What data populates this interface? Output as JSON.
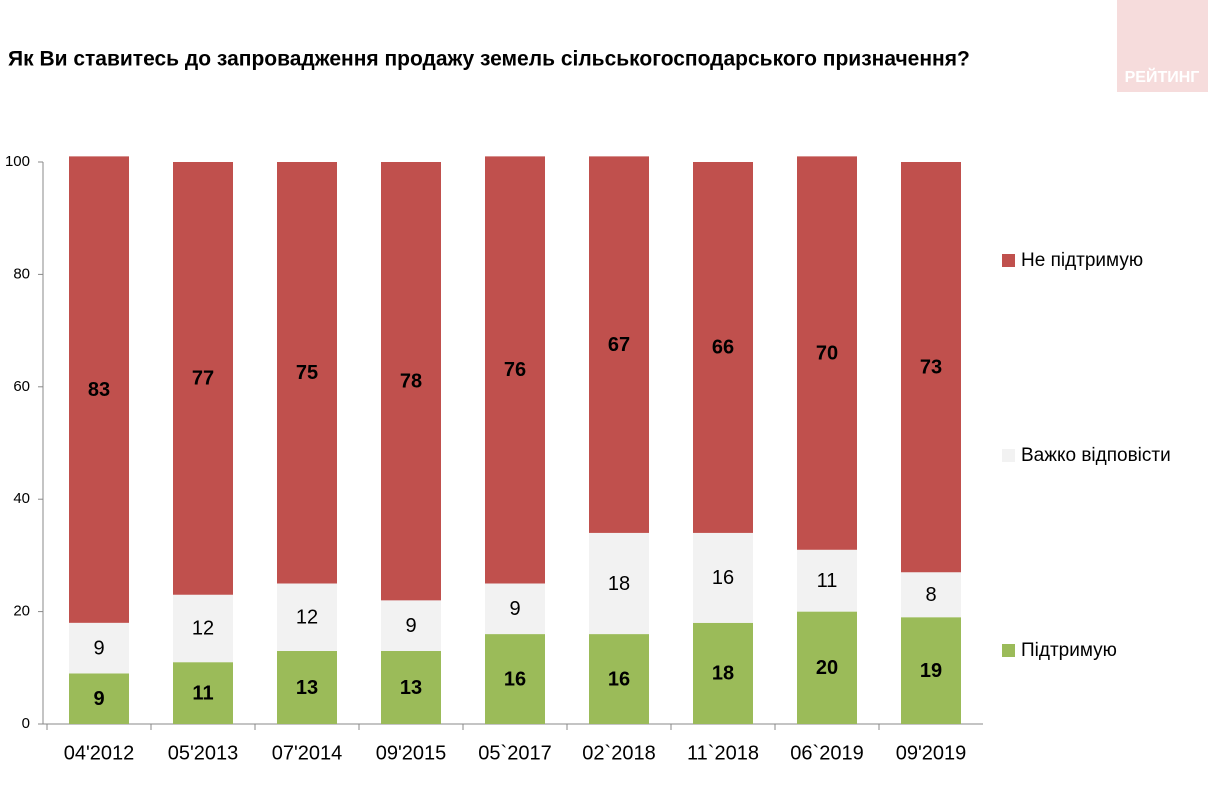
{
  "chart_data": {
    "type": "stacked_bar",
    "title": "Як Ви ставитесь до запровадження продажу земель сільськогосподарського призначення?",
    "logo": "РЕЙТИНГ",
    "categories": [
      "04'2012",
      "05'2013",
      "07'2014",
      "09'2015",
      "05`2017",
      "02`2018",
      "11`2018",
      "06`2019",
      "09'2019"
    ],
    "series": [
      {
        "name": "Підтримую",
        "color": "#9bbb59",
        "values": [
          9,
          11,
          13,
          13,
          16,
          16,
          18,
          20,
          19
        ]
      },
      {
        "name": "Важко відповісти",
        "color": "#f2f2f2",
        "values": [
          9,
          12,
          12,
          9,
          9,
          18,
          16,
          11,
          8
        ]
      },
      {
        "name": "Не підтримую",
        "color": "#c0504d",
        "values": [
          83,
          77,
          75,
          78,
          76,
          67,
          66,
          70,
          73
        ]
      }
    ],
    "ylim": [
      0,
      100
    ],
    "yticks": [
      0,
      20,
      40,
      60,
      80,
      100
    ],
    "legend": "right"
  }
}
